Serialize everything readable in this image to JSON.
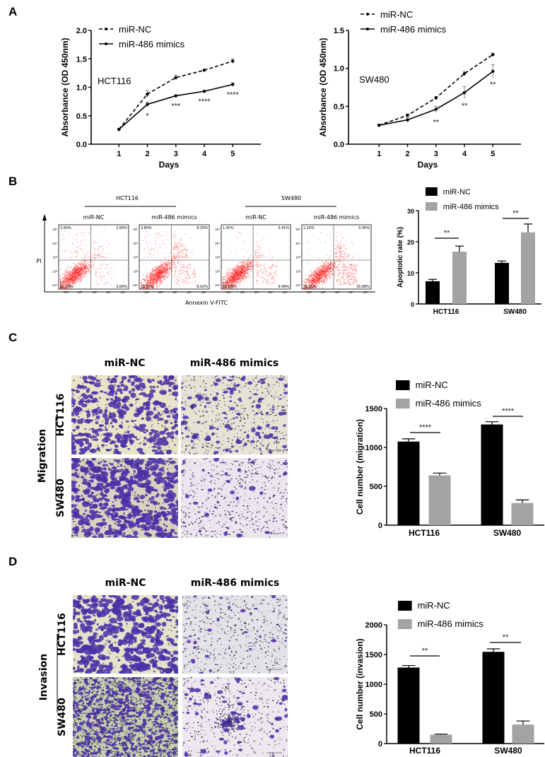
{
  "panel_labels": [
    "A",
    "B",
    "C",
    "D"
  ],
  "chart_data": [
    {
      "type": "line",
      "x": [
        1,
        2,
        3,
        4,
        5
      ],
      "xlabel": "Days",
      "ylabel": "Absorbance (OD 450nm)",
      "annotation": "HCT116",
      "ylim": [
        0,
        2.0
      ],
      "yticks": [
        0,
        0.5,
        1.0,
        1.5,
        2.0
      ],
      "ytick_labels": [
        "0.0",
        "0.5",
        "1.0",
        "1.5",
        "2.0"
      ],
      "legend": "top-left",
      "series": [
        {
          "name": "miR-NC",
          "style": "dashed",
          "values": [
            0.26,
            0.88,
            1.17,
            1.3,
            1.46
          ],
          "err": [
            0.01,
            0.06,
            0.04,
            0.02,
            0.04
          ]
        },
        {
          "name": "miR-486 mimics",
          "style": "solid",
          "values": [
            0.26,
            0.7,
            0.85,
            0.93,
            1.05
          ],
          "err": [
            0.01,
            0.04,
            0.01,
            0.01,
            0.03
          ]
        }
      ],
      "significance": [
        {
          "x": 2,
          "label": "*"
        },
        {
          "x": 3,
          "label": "***"
        },
        {
          "x": 4,
          "label": "****"
        },
        {
          "x": 5,
          "label": "****"
        }
      ]
    },
    {
      "type": "line",
      "x": [
        1,
        2,
        3,
        4,
        5
      ],
      "xlabel": "Days",
      "ylabel": "Absorbance (OD 450nm)",
      "annotation": "SW480",
      "ylim": [
        0,
        1.5
      ],
      "yticks": [
        0,
        0.5,
        1.0,
        1.5
      ],
      "ytick_labels": [
        "0.0",
        "0.5",
        "1.0",
        "1.5"
      ],
      "legend": "top-left",
      "series": [
        {
          "name": "miR-NC",
          "style": "dashed",
          "values": [
            0.25,
            0.38,
            0.61,
            0.93,
            1.18
          ],
          "err": [
            0.01,
            0.02,
            0.02,
            0.03,
            0.02
          ]
        },
        {
          "name": "miR-486 mimics",
          "style": "solid",
          "values": [
            0.25,
            0.32,
            0.46,
            0.68,
            0.96
          ],
          "err": [
            0.01,
            0.03,
            0.04,
            0.08,
            0.09
          ]
        }
      ],
      "significance": [
        {
          "x": 3,
          "label": "**"
        },
        {
          "x": 4,
          "label": "**"
        },
        {
          "x": 5,
          "label": "**"
        }
      ]
    },
    {
      "type": "bar",
      "categories": [
        "HCT116",
        "SW480"
      ],
      "ylabel": "Apoptotic rate (%)",
      "ylim": [
        0,
        30
      ],
      "yticks": [
        0,
        10,
        20,
        30
      ],
      "legend": "top",
      "series": [
        {
          "name": "miR-NC",
          "color": "#000000",
          "values": [
            7.3,
            13.2
          ],
          "err": [
            0.6,
            0.6
          ]
        },
        {
          "name": "miR-486 mimics",
          "color": "#a3a3a6",
          "values": [
            16.8,
            23.0
          ],
          "err": [
            1.8,
            2.7
          ]
        }
      ],
      "significance": [
        "**",
        "**"
      ]
    },
    {
      "type": "bar",
      "categories": [
        "HCT116",
        "SW480"
      ],
      "ylabel": "Cell number (migration)",
      "ylim": [
        0,
        1500
      ],
      "yticks": [
        0,
        500,
        1000,
        1500
      ],
      "legend": "top",
      "series": [
        {
          "name": "miR-NC",
          "color": "#000000",
          "values": [
            1075,
            1295
          ],
          "err": [
            35,
            35
          ]
        },
        {
          "name": "miR-486 mimics",
          "color": "#a3a3a6",
          "values": [
            640,
            285
          ],
          "err": [
            30,
            40
          ]
        }
      ],
      "significance": [
        "****",
        "****"
      ]
    },
    {
      "type": "bar",
      "categories": [
        "HCT116",
        "SW480"
      ],
      "ylabel": "Cell number (invasion)",
      "ylim": [
        0,
        2000
      ],
      "yticks": [
        0,
        500,
        1000,
        1500,
        2000
      ],
      "legend": "top",
      "series": [
        {
          "name": "miR-NC",
          "color": "#000000",
          "values": [
            1280,
            1545
          ],
          "err": [
            35,
            50
          ]
        },
        {
          "name": "miR-486 mimics",
          "color": "#a3a3a6",
          "values": [
            150,
            320
          ],
          "err": [
            10,
            60
          ]
        }
      ],
      "significance": [
        "**",
        "**"
      ]
    }
  ],
  "flow_cytometry": {
    "groups": [
      "HCT116",
      "SW480"
    ],
    "y_axis_label": "PI",
    "x_axis_label": "Annexin V-FITC",
    "y_ticks": [
      "10⁵",
      "10⁴",
      "10³",
      "10²",
      "-10¹"
    ],
    "x_ticks": [
      "-10¹",
      "10²",
      "10³",
      "10⁴",
      "10⁵"
    ],
    "dot_color": "#ff2020",
    "plots": [
      {
        "label": "miR-NC",
        "UL": "3.90%",
        "UR": "2.89%",
        "LL": "89.60%",
        "LR": "3.60%"
      },
      {
        "label": "miR-486 mimics",
        "UL": "3.80%",
        "UR": "8.25%",
        "LL": "79.90%",
        "LR": "8.01%"
      },
      {
        "label": "miR-NC",
        "UL": "1.42%",
        "UR": "3.41%",
        "LL": "85.68%",
        "LR": "9.49%"
      },
      {
        "label": "miR-486 mimics",
        "UL": "1.15%",
        "UR": "5.96%",
        "LL": "76.01%",
        "LR": "16.88%"
      }
    ]
  },
  "transwell": {
    "columns": [
      "miR-NC",
      "miR-486 mimics"
    ],
    "rows": [
      "HCT116",
      "SW480"
    ],
    "migration_label": "Migration",
    "invasion_label": "Invasion",
    "stain_color": "#4a2fa8"
  }
}
